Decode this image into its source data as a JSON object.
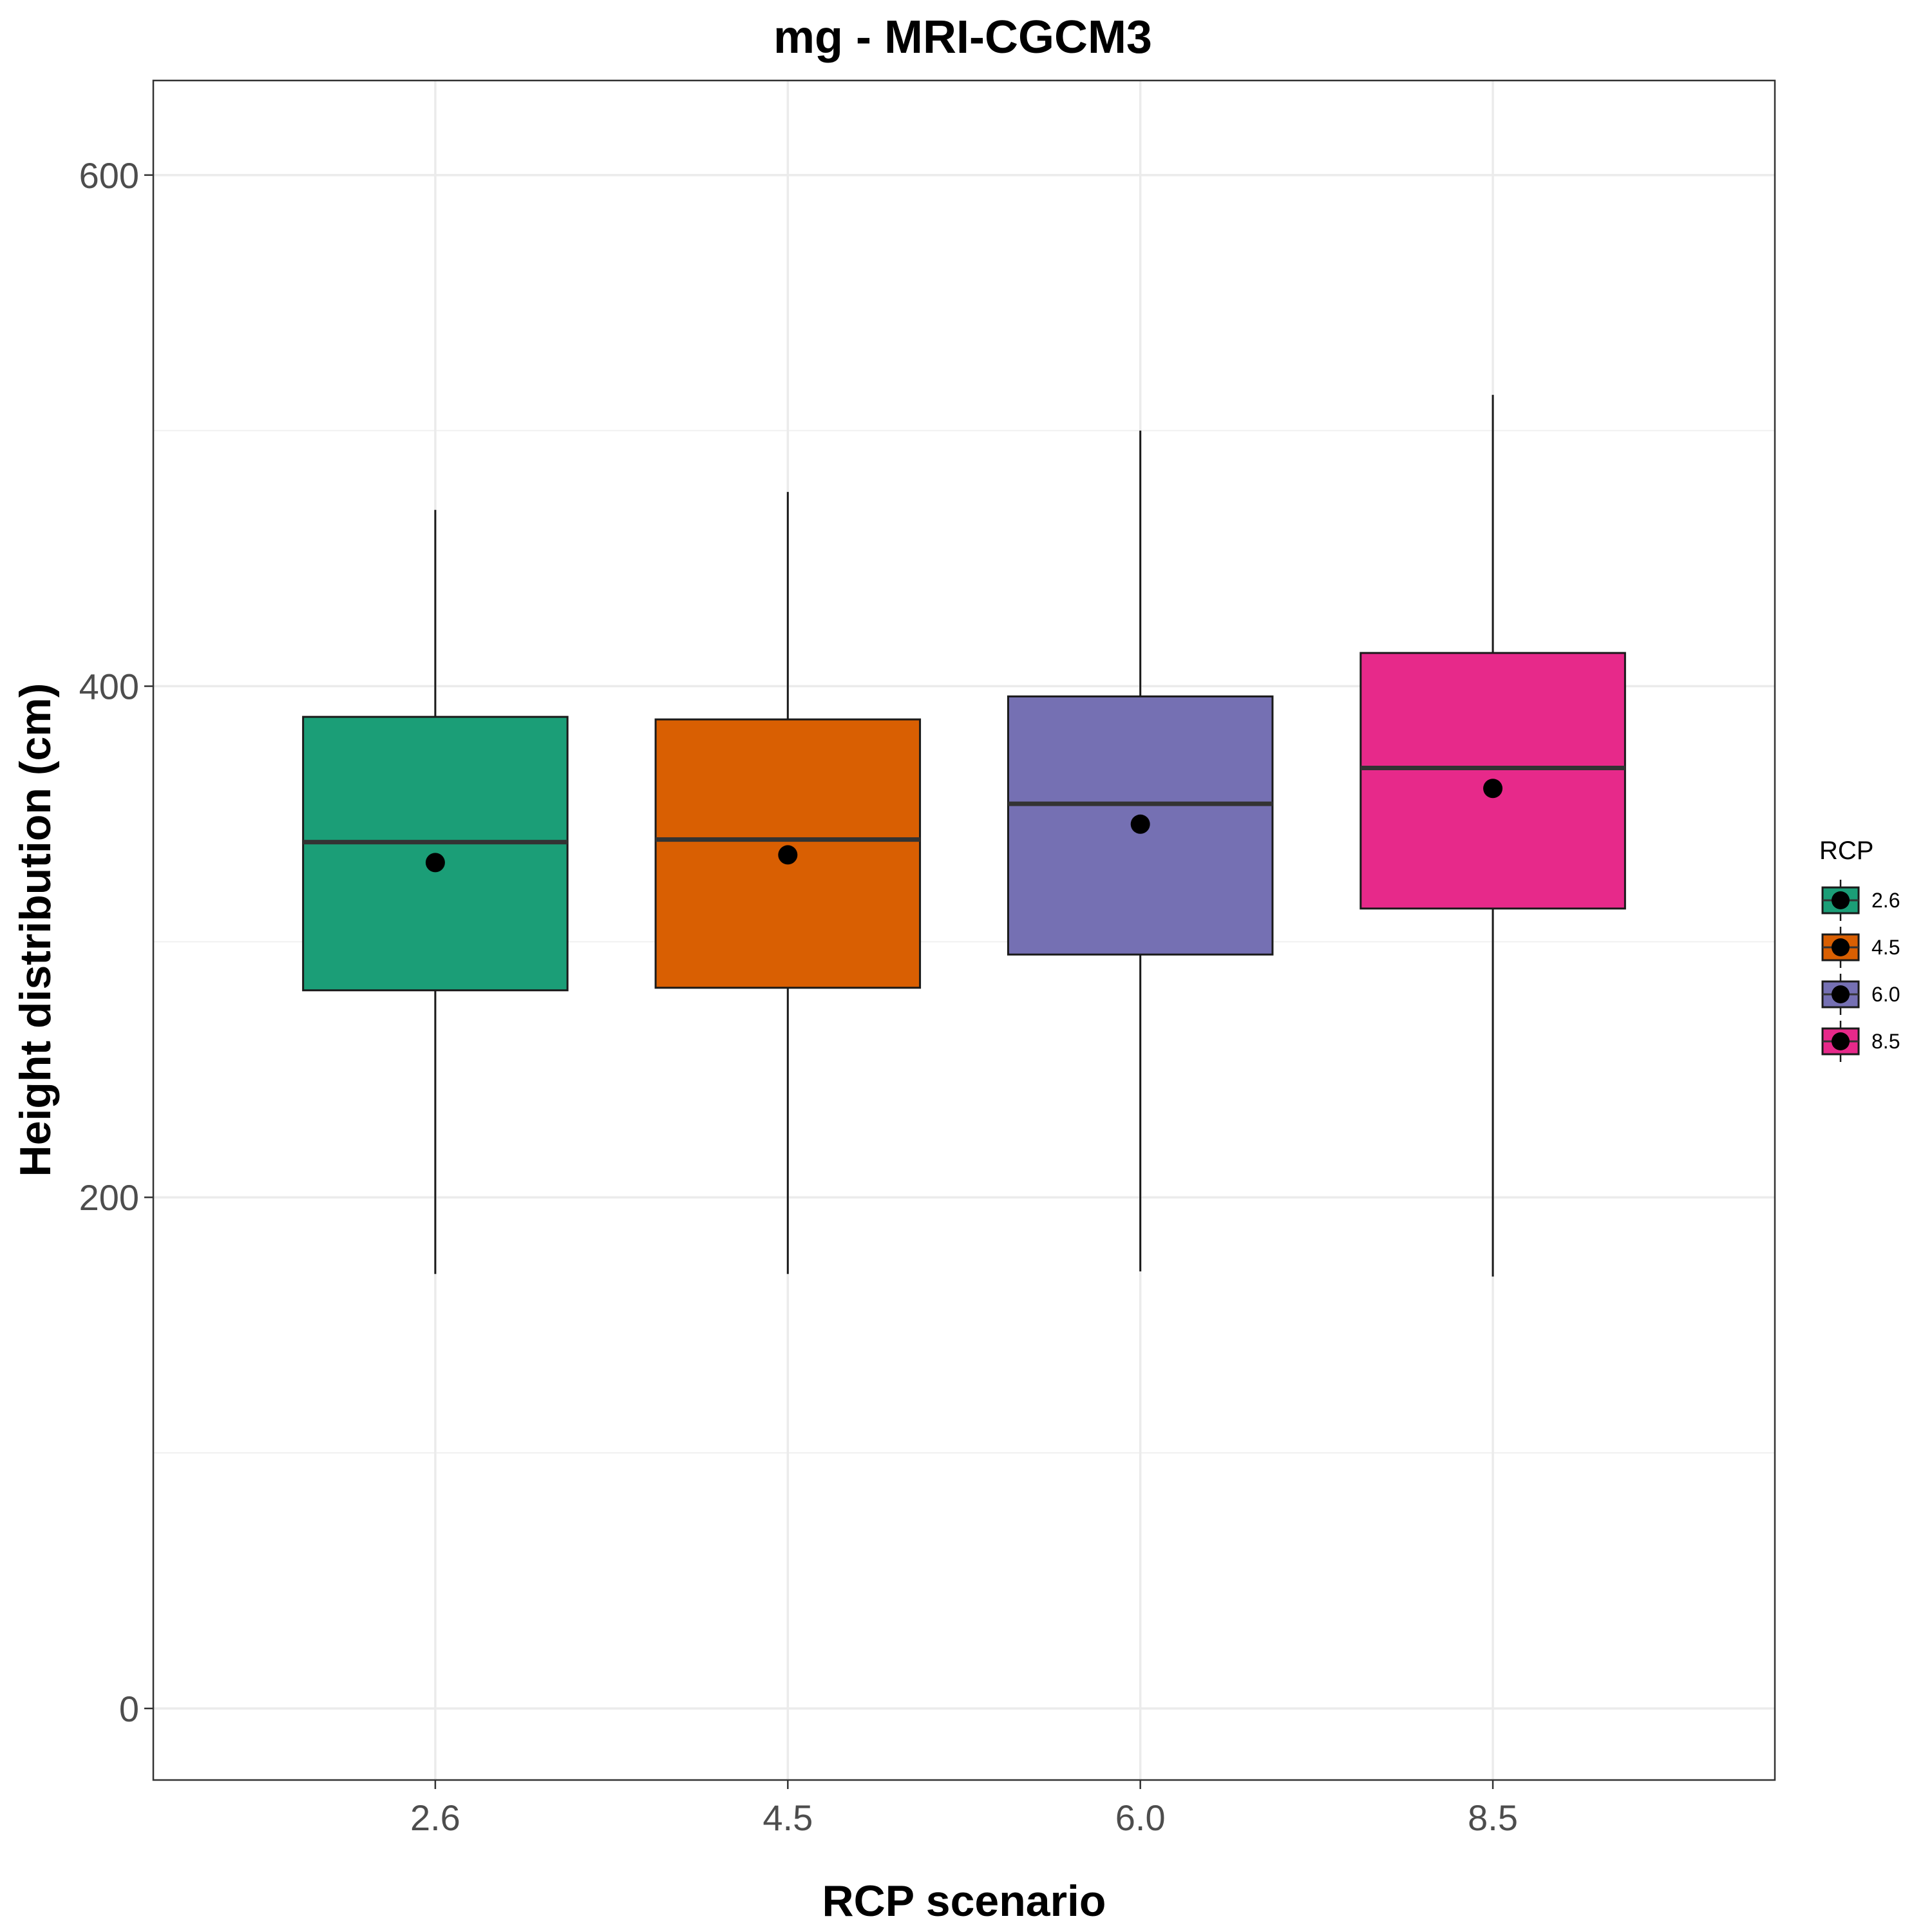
{
  "chart_data": {
    "type": "boxplot",
    "title": "mg - MRI-CGCM3",
    "xlabel": "RCP scenario",
    "ylabel": "Height distribution (cm)",
    "ylim": [
      -28,
      637
    ],
    "y_ticks": [
      0,
      200,
      400,
      600
    ],
    "y_minor_ticks": [
      100,
      300,
      500
    ],
    "grid": true,
    "legend": {
      "title": "RCP",
      "position": "right"
    },
    "categories": [
      "2.6",
      "4.5",
      "6.0",
      "8.5"
    ],
    "series": [
      {
        "category": "2.6",
        "color": "#1b9e77",
        "whisker_low": 170,
        "q1": 281,
        "median": 339,
        "q3": 388,
        "whisker_high": 469,
        "mean": 331
      },
      {
        "category": "4.5",
        "color": "#d95f02",
        "whisker_low": 170,
        "q1": 282,
        "median": 340,
        "q3": 387,
        "whisker_high": 476,
        "mean": 334
      },
      {
        "category": "6.0",
        "color": "#7570b3",
        "whisker_low": 171,
        "q1": 295,
        "median": 354,
        "q3": 396,
        "whisker_high": 500,
        "mean": 346
      },
      {
        "category": "8.5",
        "color": "#e7298a",
        "whisker_low": 169,
        "q1": 313,
        "median": 368,
        "q3": 413,
        "whisker_high": 514,
        "mean": 360
      }
    ]
  }
}
